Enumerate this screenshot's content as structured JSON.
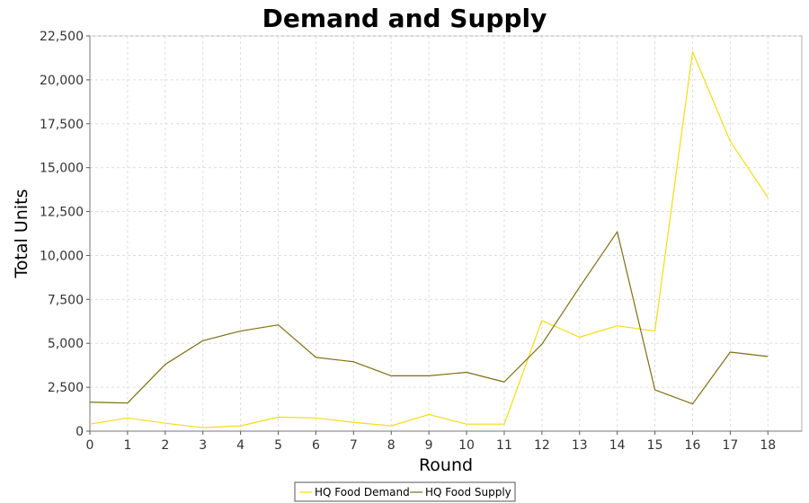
{
  "chart_data": {
    "type": "line",
    "title": "Demand and Supply",
    "xlabel": "Round",
    "ylabel": "Total Units",
    "x": [
      0,
      1,
      2,
      3,
      4,
      5,
      6,
      7,
      8,
      9,
      10,
      11,
      12,
      13,
      14,
      15,
      16,
      17,
      18
    ],
    "xlim": [
      0,
      18.9
    ],
    "ylim": [
      0,
      22500
    ],
    "yticks": [
      0,
      2500,
      5000,
      7500,
      10000,
      12500,
      15000,
      17500,
      20000,
      22500
    ],
    "ytick_labels": [
      "0",
      "2,500",
      "5,000",
      "7,500",
      "10,000",
      "12,500",
      "15,000",
      "17,500",
      "20,000",
      "22,500"
    ],
    "xtick_labels": [
      "0",
      "1",
      "2",
      "3",
      "4",
      "5",
      "6",
      "7",
      "8",
      "9",
      "10",
      "11",
      "12",
      "13",
      "14",
      "15",
      "16",
      "17",
      "18"
    ],
    "grid": true,
    "legend_position": "bottom-center",
    "series": [
      {
        "name": "HQ Food Demand",
        "color": "#f5dc14",
        "values": [
          400,
          750,
          450,
          200,
          300,
          800,
          750,
          500,
          300,
          950,
          400,
          400,
          6300,
          5350,
          6000,
          5700,
          21600,
          16500,
          13300
        ]
      },
      {
        "name": "HQ Food Supply",
        "color": "#7f6e14",
        "values": [
          1650,
          1600,
          3800,
          5150,
          5700,
          6050,
          4200,
          3950,
          3150,
          3150,
          3350,
          2800,
          4950,
          8200,
          11350,
          2350,
          1550,
          4500,
          4250
        ]
      }
    ]
  }
}
